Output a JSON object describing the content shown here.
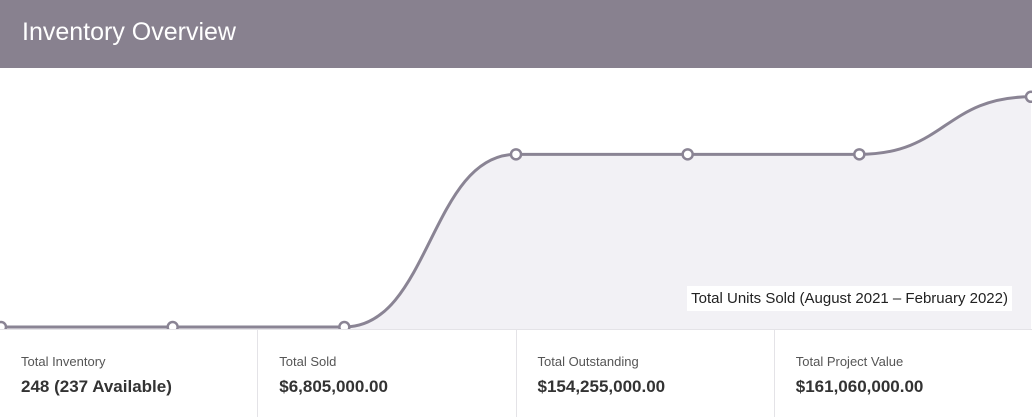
{
  "header": {
    "title": "Inventory Overview"
  },
  "chart_data": {
    "type": "line",
    "title": "Total Units Sold (August 2021 – February 2022)",
    "categories": [
      null,
      null,
      null,
      null,
      null,
      null,
      null
    ],
    "values": [
      0,
      0,
      0,
      6,
      6,
      6,
      8
    ],
    "color": "#8a8494",
    "fill": "#f2f1f5",
    "ylim": [
      0,
      9
    ],
    "smooth": true
  },
  "stats": [
    {
      "label": "Total Inventory",
      "value": "248 (237 Available)"
    },
    {
      "label": "Total Sold",
      "value": "$6,805,000.00"
    },
    {
      "label": "Total Outstanding",
      "value": "$154,255,000.00"
    },
    {
      "label": "Total Project Value",
      "value": "$161,060,000.00"
    }
  ]
}
